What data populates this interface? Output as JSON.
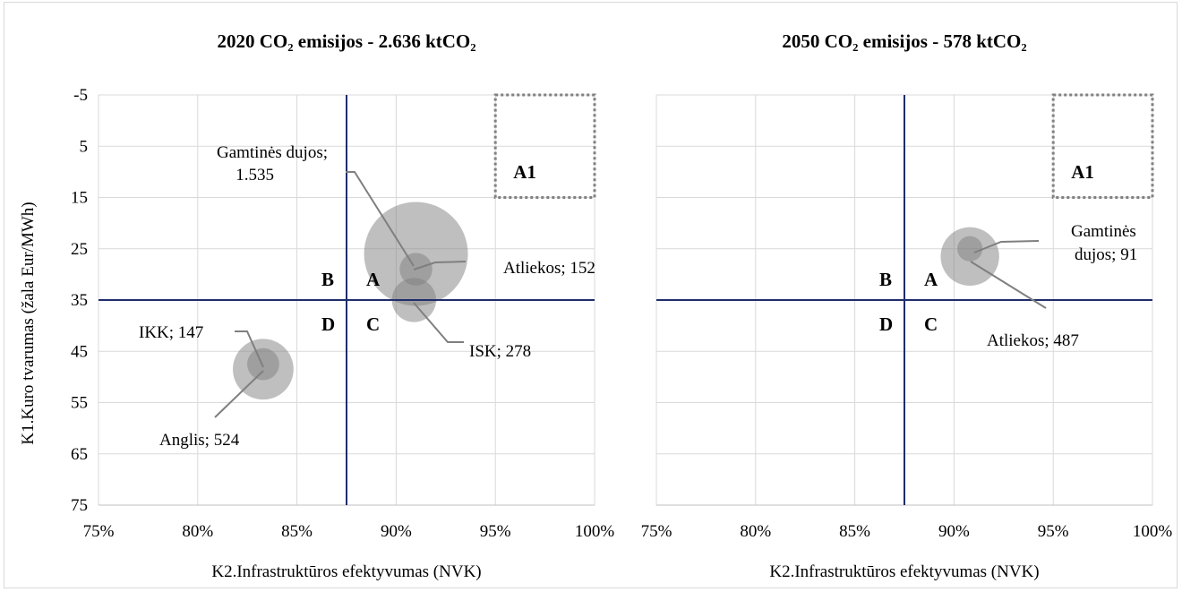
{
  "figure": {
    "y_axis_title": "K1.Kuro tvarumas (žala Eur/MWh)",
    "x_axis_title": "K2.Infrastruktūros efektyvumas (NVK)"
  },
  "chart_data": [
    {
      "type": "scatter",
      "subtype": "bubble",
      "title": "2020 CO₂ emisijos - 2.636 ktCO₂",
      "xlabel": "K2.Infrastruktūros efektyvumas (NVK)",
      "ylabel": "K1.Kuro tvarumas (žala Eur/MWh)",
      "xlim": [
        0.75,
        1.0
      ],
      "ylim": [
        -5,
        75
      ],
      "y_reversed": true,
      "x_ticks": [
        "75%",
        "80%",
        "85%",
        "90%",
        "95%",
        "100%"
      ],
      "y_ticks": [
        "-5",
        "5",
        "15",
        "25",
        "35",
        "45",
        "55",
        "65",
        "75"
      ],
      "grid": true,
      "quadrant_divider": {
        "x": 0.875,
        "y": 35
      },
      "quadrant_labels": [
        "A",
        "B",
        "C",
        "D"
      ],
      "target_box": {
        "label": "A1",
        "x": [
          0.95,
          1.0
        ],
        "y": [
          -5,
          15
        ]
      },
      "series": [
        {
          "name": "Gamtinės dujos",
          "x": 0.91,
          "y": 26,
          "size": 1535,
          "label_lines": [
            "Gamtinės dujos;",
            "1.535"
          ]
        },
        {
          "name": "Atliekos",
          "x": 0.91,
          "y": 29,
          "size": 152,
          "label_lines": [
            "Atliekos;  152"
          ]
        },
        {
          "name": "ISK",
          "x": 0.909,
          "y": 35,
          "size": 278,
          "label_lines": [
            "ISK; 278"
          ]
        },
        {
          "name": "IKK",
          "x": 0.833,
          "y": 47.5,
          "size": 147,
          "label_lines": [
            "IKK; 147"
          ]
        },
        {
          "name": "Anglis",
          "x": 0.833,
          "y": 48.5,
          "size": 524,
          "label_lines": [
            "Anglis;  524"
          ]
        }
      ]
    },
    {
      "type": "scatter",
      "subtype": "bubble",
      "title": "2050 CO₂ emisijos - 578 ktCO₂",
      "xlabel": "K2.Infrastruktūros efektyvumas (NVK)",
      "xlim": [
        0.75,
        1.0
      ],
      "ylim": [
        -5,
        75
      ],
      "y_reversed": true,
      "x_ticks": [
        "75%",
        "80%",
        "85%",
        "90%",
        "95%",
        "100%"
      ],
      "grid": true,
      "quadrant_divider": {
        "x": 0.875,
        "y": 35
      },
      "quadrant_labels": [
        "A",
        "B",
        "C",
        "D"
      ],
      "target_box": {
        "label": "A1",
        "x": [
          0.95,
          1.0
        ],
        "y": [
          -5,
          15
        ]
      },
      "series": [
        {
          "name": "Atliekos",
          "x": 0.908,
          "y": 26.5,
          "size": 487,
          "label_lines": [
            "Atliekos;  487"
          ]
        },
        {
          "name": "Gamtinės dujos",
          "x": 0.908,
          "y": 25,
          "size": 91,
          "label_lines": [
            "Gamtinės",
            "dujos; 91"
          ]
        }
      ]
    }
  ]
}
